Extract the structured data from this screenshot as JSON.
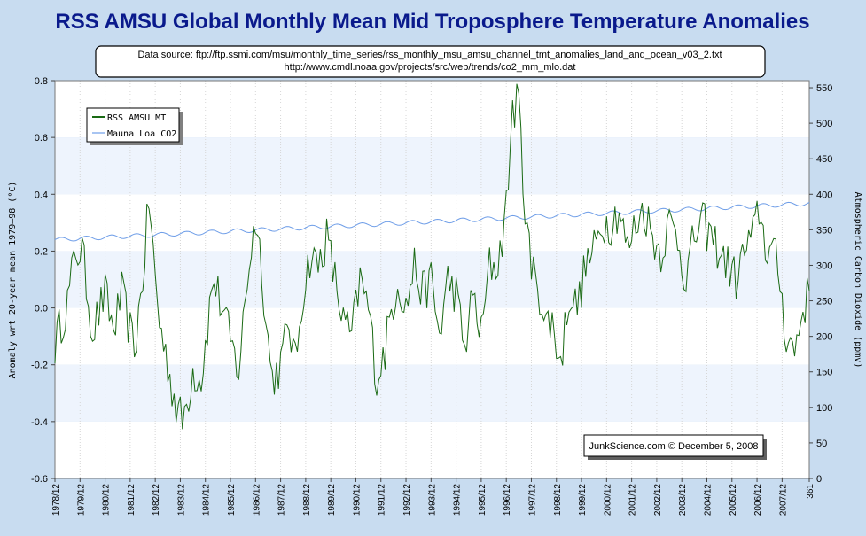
{
  "colors": {
    "background": "#c8dcf0",
    "plot_band_light": "#ffffff",
    "plot_band_tint": "#eef4fd",
    "title": "#0a1a8c",
    "tmt_series": "#1a6a14",
    "co2_series": "#6f9ee8",
    "grid": "#d6d6d6"
  },
  "chart_data": {
    "type": "line",
    "title": "RSS AMSU Global Monthly Mean Mid Troposphere Temperature Anomalies",
    "source_lines": [
      "Data source: ftp://ftp.ssmi.com/msu/monthly_time_series/rss_monthly_msu_amsu_channel_tmt_anomalies_land_and_ocean_v03_2.txt",
      "http://www.cmdl.noaa.gov/projects/src/web/trends/co2_mm_mlo.dat"
    ],
    "credit": "JunkScience.com © December 5, 2008",
    "ylabel_left": "Anomaly wrt 20-year mean 1979–98 (°C)",
    "ylabel_right": "Atmospheric Carbon Dioxide (ppmv)",
    "xlabel": "",
    "xlim": [
      0,
      361
    ],
    "ylim_left": [
      -0.6,
      0.8
    ],
    "ylim_right": [
      0,
      560
    ],
    "x_tick_labels": [
      "1978/12",
      "1979/12",
      "1980/12",
      "1981/12",
      "1982/12",
      "1983/12",
      "1984/12",
      "1985/12",
      "1986/12",
      "1987/12",
      "1988/12",
      "1989/12",
      "1990/12",
      "1991/12",
      "1992/12",
      "1993/12",
      "1994/12",
      "1995/12",
      "1996/12",
      "1997/12",
      "1998/12",
      "1999/12",
      "2000/12",
      "2001/12",
      "2002/12",
      "2003/12",
      "2004/12",
      "2005/12",
      "2006/12",
      "2007/12",
      "361"
    ],
    "y_ticks_left": [
      "0.8",
      "0.6",
      "0.4",
      "0.2",
      "0.0",
      "-0.2",
      "-0.4",
      "-0.6"
    ],
    "y_ticks_right": [
      "550",
      "500",
      "450",
      "400",
      "350",
      "300",
      "250",
      "200",
      "150",
      "100",
      "50",
      "0"
    ],
    "legend_position": "top-left",
    "grid": true,
    "series": [
      {
        "name": "RSS AMSU MT",
        "axis": "left",
        "anchors_x": [
          0,
          3,
          6,
          10,
          13,
          18,
          24,
          28,
          32,
          38,
          42,
          45,
          48,
          50,
          54,
          58,
          61,
          64,
          66,
          70,
          74,
          76,
          80,
          85,
          88,
          92,
          96,
          99,
          101,
          104,
          108,
          112,
          115,
          118,
          122,
          126,
          130,
          134,
          138,
          142,
          146,
          150,
          154,
          158,
          160,
          164,
          168,
          172,
          176,
          180,
          184,
          188,
          192,
          196,
          200,
          204,
          208,
          212,
          216,
          219,
          222,
          224,
          226,
          228,
          230,
          234,
          238,
          242,
          246,
          250,
          254,
          258,
          262,
          266,
          270,
          274,
          278,
          282,
          286,
          290,
          294,
          298,
          302,
          306,
          310,
          314,
          318,
          322,
          326,
          330,
          334,
          337,
          340,
          343,
          346,
          350,
          354,
          358,
          361
        ],
        "anchors_y": [
          -0.13,
          -0.05,
          0.02,
          0.2,
          0.2,
          -0.08,
          0.05,
          -0.08,
          0.05,
          -0.15,
          0.1,
          0.38,
          0.1,
          -0.05,
          -0.2,
          -0.35,
          -0.4,
          -0.3,
          -0.22,
          -0.25,
          0.0,
          0.1,
          0.0,
          -0.15,
          -0.22,
          0.1,
          0.32,
          0.15,
          -0.05,
          -0.25,
          -0.2,
          -0.05,
          -0.2,
          0.02,
          0.18,
          0.15,
          0.25,
          0.1,
          -0.05,
          -0.1,
          0.1,
          0.0,
          -0.25,
          -0.15,
          -0.05,
          0.1,
          0.0,
          0.15,
          0.05,
          0.1,
          -0.1,
          0.1,
          0.05,
          -0.15,
          0.05,
          -0.1,
          0.15,
          0.15,
          0.35,
          0.7,
          0.72,
          0.45,
          0.3,
          0.1,
          0.15,
          -0.05,
          -0.05,
          -0.2,
          0.05,
          0.0,
          0.15,
          0.2,
          0.3,
          0.3,
          0.35,
          0.2,
          0.3,
          0.35,
          0.25,
          0.2,
          0.3,
          0.25,
          0.1,
          0.25,
          0.3,
          0.25,
          0.2,
          0.15,
          0.1,
          0.2,
          0.25,
          0.35,
          0.22,
          0.2,
          0.15,
          -0.1,
          -0.15,
          0.0,
          0.05
        ]
      },
      {
        "name": "Mauna Loa CO2",
        "axis": "right",
        "start_ppmv": 336,
        "end_ppmv": 387,
        "seasonal_amplitude": 3
      }
    ]
  }
}
